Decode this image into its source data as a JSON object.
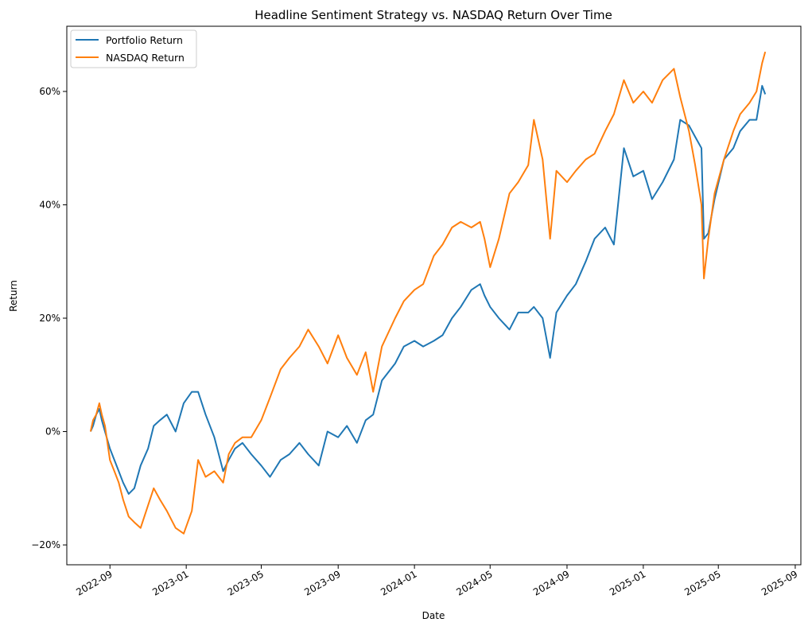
{
  "chart_data": {
    "type": "line",
    "title": "Headline Sentiment Strategy vs. NASDAQ Return Over Time",
    "xlabel": "Date",
    "ylabel": "Return",
    "x_ticks": [
      "2022-09",
      "2023-01",
      "2023-05",
      "2023-09",
      "2024-01",
      "2024-05",
      "2024-09",
      "2025-01",
      "2025-05",
      "2025-09"
    ],
    "y_ticks": [
      "−20%",
      "0%",
      "20%",
      "40%",
      "60%"
    ],
    "y_tick_values": [
      -0.2,
      0,
      0.2,
      0.4,
      0.6
    ],
    "xlim": [
      "2022-06-24",
      "2025-09-10"
    ],
    "ylim": [
      -0.235,
      0.715
    ],
    "grid": false,
    "legend_position": "top-left",
    "x": [
      "2022-08-01",
      "2022-08-05",
      "2022-08-10",
      "2022-08-15",
      "2022-08-19",
      "2022-08-24",
      "2022-09-01",
      "2022-09-08",
      "2022-09-15",
      "2022-09-22",
      "2022-10-01",
      "2022-10-10",
      "2022-10-20",
      "2022-11-01",
      "2022-11-10",
      "2022-11-20",
      "2022-12-01",
      "2022-12-15",
      "2022-12-28",
      "2023-01-10",
      "2023-01-20",
      "2023-02-01",
      "2023-02-15",
      "2023-03-01",
      "2023-03-10",
      "2023-03-20",
      "2023-04-01",
      "2023-04-15",
      "2023-05-01",
      "2023-05-15",
      "2023-06-01",
      "2023-06-15",
      "2023-07-01",
      "2023-07-15",
      "2023-08-01",
      "2023-08-15",
      "2023-09-01",
      "2023-09-15",
      "2023-10-01",
      "2023-10-15",
      "2023-10-27",
      "2023-11-10",
      "2023-12-01",
      "2023-12-15",
      "2024-01-01",
      "2024-01-15",
      "2024-02-01",
      "2024-02-15",
      "2024-03-01",
      "2024-03-15",
      "2024-04-01",
      "2024-04-15",
      "2024-04-22",
      "2024-05-01",
      "2024-05-15",
      "2024-06-01",
      "2024-06-15",
      "2024-07-01",
      "2024-07-10",
      "2024-07-24",
      "2024-08-05",
      "2024-08-15",
      "2024-09-01",
      "2024-09-15",
      "2024-10-01",
      "2024-10-15",
      "2024-11-01",
      "2024-11-15",
      "2024-12-01",
      "2024-12-16",
      "2025-01-01",
      "2025-01-15",
      "2025-02-01",
      "2025-02-19",
      "2025-03-01",
      "2025-03-15",
      "2025-03-25",
      "2025-04-04",
      "2025-04-08",
      "2025-04-15",
      "2025-04-25",
      "2025-05-10",
      "2025-05-25",
      "2025-06-05",
      "2025-06-20",
      "2025-07-01",
      "2025-07-10",
      "2025-07-15"
    ],
    "series": [
      {
        "name": "Portfolio Return",
        "color": "#1f77b4",
        "values": [
          0.0,
          0.01,
          0.03,
          0.04,
          0.02,
          0.0,
          -0.03,
          -0.05,
          -0.07,
          -0.09,
          -0.11,
          -0.1,
          -0.06,
          -0.03,
          0.01,
          0.02,
          0.03,
          0.0,
          0.05,
          0.07,
          0.07,
          0.03,
          -0.01,
          -0.07,
          -0.05,
          -0.03,
          -0.02,
          -0.04,
          -0.06,
          -0.08,
          -0.05,
          -0.04,
          -0.02,
          -0.04,
          -0.06,
          0.0,
          -0.01,
          0.01,
          -0.02,
          0.02,
          0.03,
          0.09,
          0.12,
          0.15,
          0.16,
          0.15,
          0.16,
          0.17,
          0.2,
          0.22,
          0.25,
          0.26,
          0.24,
          0.22,
          0.2,
          0.18,
          0.21,
          0.21,
          0.22,
          0.2,
          0.13,
          0.21,
          0.24,
          0.26,
          0.3,
          0.34,
          0.36,
          0.33,
          0.5,
          0.45,
          0.46,
          0.41,
          0.44,
          0.48,
          0.55,
          0.54,
          0.52,
          0.5,
          0.34,
          0.35,
          0.41,
          0.48,
          0.5,
          0.53,
          0.55,
          0.55,
          0.61,
          0.595
        ]
      },
      {
        "name": "NASDAQ Return",
        "color": "#ff7f0e",
        "values": [
          0.0,
          0.02,
          0.03,
          0.05,
          0.03,
          0.01,
          -0.05,
          -0.07,
          -0.09,
          -0.12,
          -0.15,
          -0.16,
          -0.17,
          -0.13,
          -0.1,
          -0.12,
          -0.14,
          -0.17,
          -0.18,
          -0.14,
          -0.05,
          -0.08,
          -0.07,
          -0.09,
          -0.04,
          -0.02,
          -0.01,
          -0.01,
          0.02,
          0.06,
          0.11,
          0.13,
          0.15,
          0.18,
          0.15,
          0.12,
          0.17,
          0.13,
          0.1,
          0.14,
          0.07,
          0.15,
          0.2,
          0.23,
          0.25,
          0.26,
          0.31,
          0.33,
          0.36,
          0.37,
          0.36,
          0.37,
          0.34,
          0.29,
          0.34,
          0.42,
          0.44,
          0.47,
          0.55,
          0.48,
          0.34,
          0.46,
          0.44,
          0.46,
          0.48,
          0.49,
          0.53,
          0.56,
          0.62,
          0.58,
          0.6,
          0.58,
          0.62,
          0.64,
          0.59,
          0.53,
          0.47,
          0.4,
          0.27,
          0.34,
          0.42,
          0.48,
          0.53,
          0.56,
          0.58,
          0.6,
          0.65,
          0.67
        ]
      }
    ]
  }
}
